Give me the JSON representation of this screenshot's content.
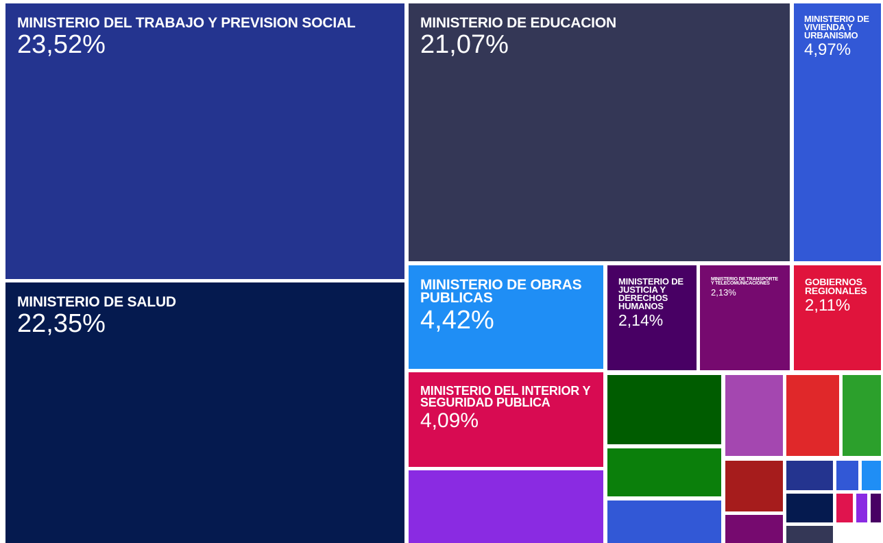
{
  "chart_data": {
    "type": "treemap",
    "categories": [
      "MINISTERIO DEL TRABAJO Y PREVISION SOCIAL",
      "MINISTERIO DE SALUD",
      "MINISTERIO DE EDUCACION",
      "MINISTERIO DE VIVIENDA Y URBANISMO",
      "MINISTERIO DE OBRAS PUBLICAS",
      "MINISTERIO DE JUSTICIA Y DERECHOS HUMANOS",
      "MINISTERIO DE TRANSPORTE Y TELECOMUNICACIONES",
      "GOBIERNOS REGIONALES",
      "MINISTERIO DEL INTERIOR Y SEGURIDAD PUBLICA",
      null,
      null,
      null,
      null,
      null,
      null,
      null,
      null,
      null,
      null,
      null,
      null,
      null,
      null,
      null,
      null,
      null
    ],
    "values": [
      23.52,
      22.35,
      21.07,
      4.97,
      4.42,
      2.14,
      2.13,
      2.11,
      4.09,
      3.8,
      1.7,
      1.2,
      1.1,
      1.0,
      0.9,
      0.7,
      0.6,
      0.4,
      0.3,
      0.15,
      0.12,
      0.3,
      0.1,
      0.07,
      0.06,
      0.2
    ],
    "value_labels": [
      "23,52%",
      "22,35%",
      "21,07%",
      "4,97%",
      "4,42%",
      "2,14%",
      "2,13%",
      "2,11%",
      "4,09%",
      null,
      null,
      null,
      null,
      null,
      null,
      null,
      null,
      null,
      null,
      null,
      null,
      null,
      null,
      null,
      null,
      null
    ],
    "colors": [
      "#24348f",
      "#051a4f",
      "#343756",
      "#3258d6",
      "#1f8ef5",
      "#480064",
      "#760a6f",
      "#e0143c",
      "#d80b52",
      "#8a2be2",
      "#005c00",
      "#0b7f0b",
      "#3258d6",
      "#a447b0",
      "#e0282a",
      "#2ca02c",
      "#a61c1c",
      "#760a6f",
      "#24348f",
      "#3258d6",
      "#1f8ef5",
      "#051a4f",
      "#e0144e",
      "#8a2be2",
      "#480064",
      "#343756"
    ]
  }
}
